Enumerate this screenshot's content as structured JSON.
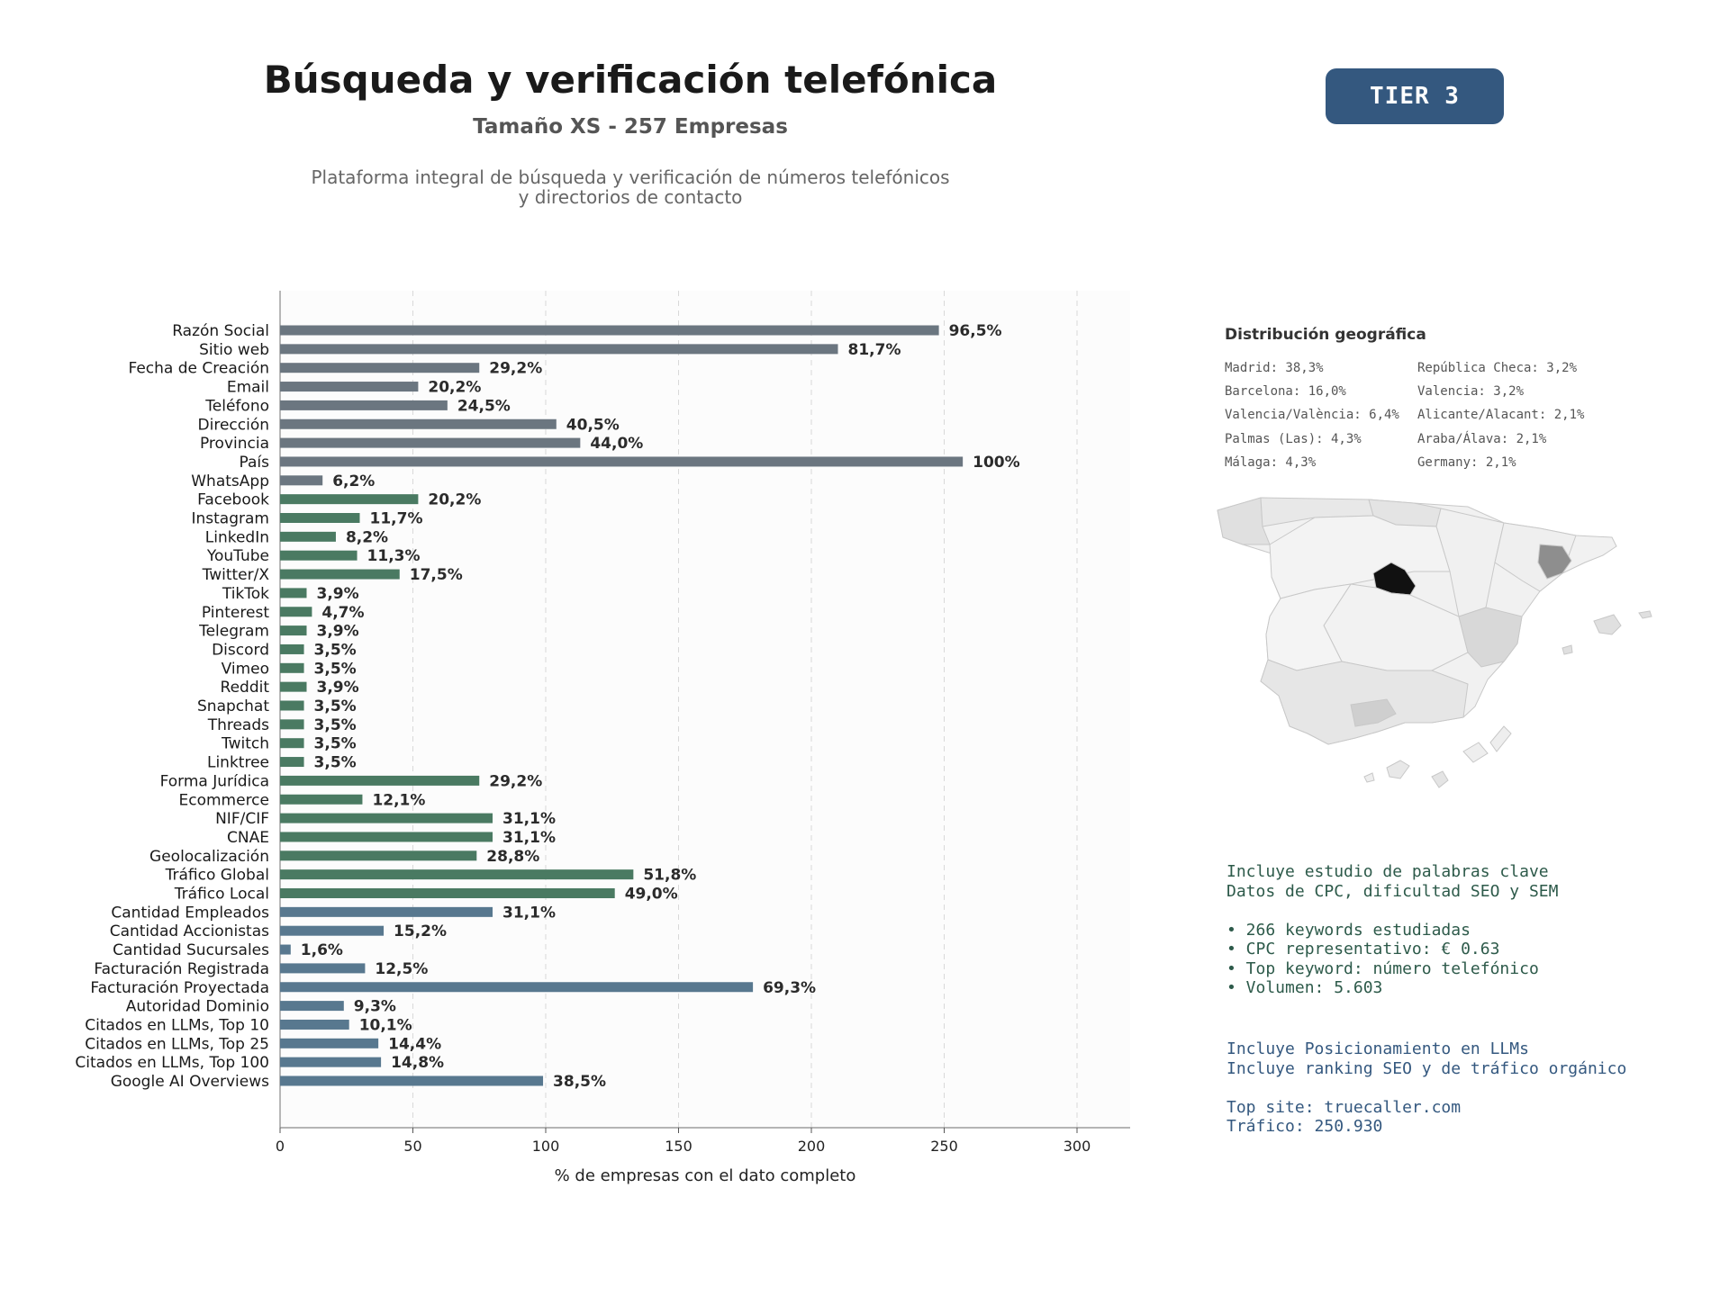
{
  "header": {
    "title": "Búsqueda y verificación telefónica",
    "subtitle": "Tamaño XS - 257 Empresas",
    "description_line1": "Plataforma integral de búsqueda y verificación de números telefónicos",
    "description_line2": "y directorios de contacto",
    "tier_label": "TIER 3"
  },
  "chart_data": {
    "type": "bar",
    "orientation": "horizontal",
    "xlabel": "% de empresas con el dato completo",
    "ylabel": "",
    "xlim": [
      0,
      320
    ],
    "xticks": [
      0,
      50,
      100,
      150,
      200,
      250,
      300
    ],
    "grid": "vertical dashed",
    "colors": {
      "group1": "#6b7680",
      "group2": "#4a7a62",
      "group3": "#58788f",
      "label": "#2b2b2b"
    },
    "categories": [
      "Razón Social",
      "Sitio web",
      "Fecha de Creación",
      "Email",
      "Teléfono",
      "Dirección",
      "Provincia",
      "País",
      "WhatsApp",
      "Facebook",
      "Instagram",
      "LinkedIn",
      "YouTube",
      "Twitter/X",
      "TikTok",
      "Pinterest",
      "Telegram",
      "Discord",
      "Vimeo",
      "Reddit",
      "Snapchat",
      "Threads",
      "Twitch",
      "Linktree",
      "Forma Jurídica",
      "Ecommerce",
      "NIF/CIF",
      "CNAE",
      "Geolocalización",
      "Tráfico Global",
      "Tráfico Local",
      "Cantidad Empleados",
      "Cantidad Accionistas",
      "Cantidad Sucursales",
      "Facturación Registrada",
      "Facturación Proyectada",
      "Autoridad Dominio",
      "Citados en LLMs, Top 10",
      "Citados en LLMs, Top 25",
      "Citados en LLMs, Top 100",
      "Google AI Overviews"
    ],
    "values": [
      248,
      210,
      75,
      52,
      63,
      104,
      113,
      257,
      16,
      52,
      30,
      21,
      29,
      45,
      10,
      12,
      10,
      9,
      9,
      10,
      9,
      9,
      9,
      9,
      75,
      31,
      80,
      80,
      74,
      133,
      126,
      80,
      39,
      4,
      32,
      178,
      24,
      26,
      37,
      38,
      99
    ],
    "labels": [
      "96,5%",
      "81,7%",
      "29,2%",
      "20,2%",
      "24,5%",
      "40,5%",
      "44,0%",
      "100%",
      "6,2%",
      "20,2%",
      "11,7%",
      "8,2%",
      "11,3%",
      "17,5%",
      "3,9%",
      "4,7%",
      "3,9%",
      "3,5%",
      "3,5%",
      "3,9%",
      "3,5%",
      "3,5%",
      "3,5%",
      "3,5%",
      "29,2%",
      "12,1%",
      "31,1%",
      "31,1%",
      "28,8%",
      "51,8%",
      "49,0%",
      "31,1%",
      "15,2%",
      "1,6%",
      "12,5%",
      "69,3%",
      "9,3%",
      "10,1%",
      "14,4%",
      "14,8%",
      "38,5%"
    ],
    "groups": [
      1,
      1,
      1,
      1,
      1,
      1,
      1,
      1,
      1,
      2,
      2,
      2,
      2,
      2,
      2,
      2,
      2,
      2,
      2,
      2,
      2,
      2,
      2,
      2,
      2,
      2,
      2,
      2,
      2,
      2,
      2,
      3,
      3,
      3,
      3,
      3,
      3,
      3,
      3,
      3,
      3
    ]
  },
  "geo": {
    "title": "Distribución geográfica",
    "items": [
      "Madrid: 38,3%",
      "República Checa: 3,2%",
      "Barcelona: 16,0%",
      "Valencia: 3,2%",
      "Valencia/València: 6,4%",
      "Alicante/Alacant: 2,1%",
      "Palmas (Las): 4,3%",
      "Araba/Álava: 2,1%",
      "Málaga: 4,3%",
      "Germany: 2,1%"
    ]
  },
  "keywords": {
    "line1": "Incluye estudio de palabras clave",
    "line2": "Datos de CPC, dificultad SEO y SEM",
    "bullet1": "• 266 keywords estudiadas",
    "bullet2": "• CPC representativo: € 0.63",
    "bullet3": "• Top keyword: número telefónico",
    "bullet4": "• Volumen: 5.603"
  },
  "llm": {
    "line1": "Incluye Posicionamiento en LLMs",
    "line2": "Incluye ranking SEO y de tráfico orgánico",
    "line3": "Top site: truecaller.com",
    "line4": "Tráfico: 250.930"
  }
}
